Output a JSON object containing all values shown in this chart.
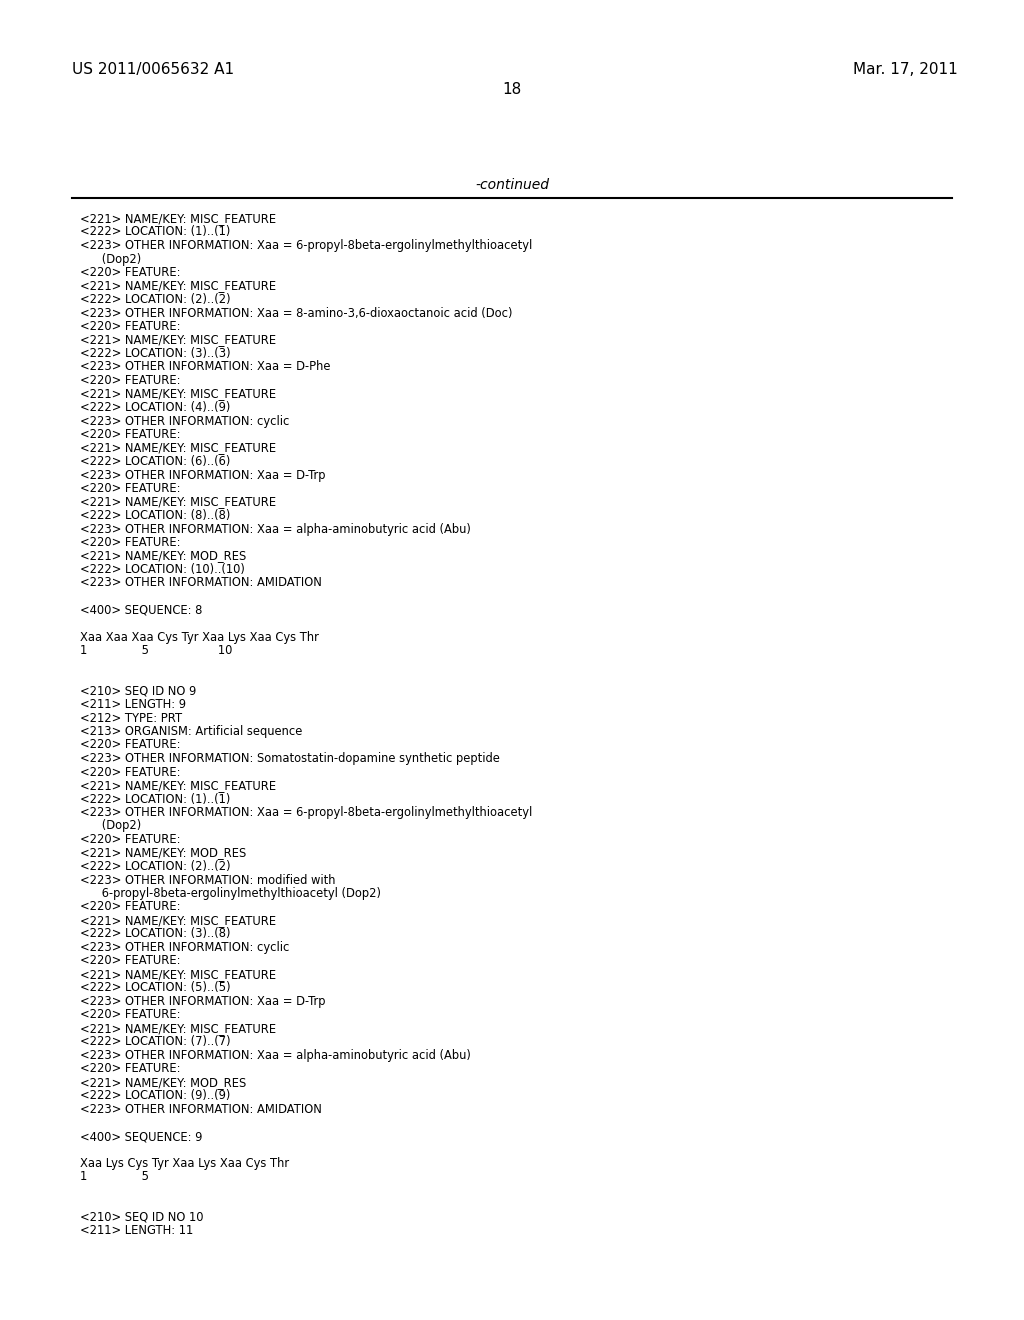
{
  "left_header": "US 2011/0065632 A1",
  "right_header": "Mar. 17, 2011",
  "page_number": "18",
  "continued_label": "-continued",
  "background_color": "#ffffff",
  "text_color": "#000000",
  "font_size": 8.3,
  "header_font_size": 11.0,
  "page_num_font_size": 11.0,
  "continued_font_size": 10.0,
  "lines": [
    "<221> NAME/KEY: MISC_FEATURE",
    "<222> LOCATION: (1)..(1)",
    "<223> OTHER INFORMATION: Xaa = 6-propyl-8beta-ergolinylmethylthioacetyl",
    "      (Dop2)",
    "<220> FEATURE:",
    "<221> NAME/KEY: MISC_FEATURE",
    "<222> LOCATION: (2)..(2)",
    "<223> OTHER INFORMATION: Xaa = 8-amino-3,6-dioxaoctanoic acid (Doc)",
    "<220> FEATURE:",
    "<221> NAME/KEY: MISC_FEATURE",
    "<222> LOCATION: (3)..(3)",
    "<223> OTHER INFORMATION: Xaa = D-Phe",
    "<220> FEATURE:",
    "<221> NAME/KEY: MISC_FEATURE",
    "<222> LOCATION: (4)..(9)",
    "<223> OTHER INFORMATION: cyclic",
    "<220> FEATURE:",
    "<221> NAME/KEY: MISC_FEATURE",
    "<222> LOCATION: (6)..(6)",
    "<223> OTHER INFORMATION: Xaa = D-Trp",
    "<220> FEATURE:",
    "<221> NAME/KEY: MISC_FEATURE",
    "<222> LOCATION: (8)..(8)",
    "<223> OTHER INFORMATION: Xaa = alpha-aminobutyric acid (Abu)",
    "<220> FEATURE:",
    "<221> NAME/KEY: MOD_RES",
    "<222> LOCATION: (10)..(10)",
    "<223> OTHER INFORMATION: AMIDATION",
    "",
    "<400> SEQUENCE: 8",
    "",
    "Xaa Xaa Xaa Cys Tyr Xaa Lys Xaa Cys Thr",
    "1               5                   10",
    "",
    "",
    "<210> SEQ ID NO 9",
    "<211> LENGTH: 9",
    "<212> TYPE: PRT",
    "<213> ORGANISM: Artificial sequence",
    "<220> FEATURE:",
    "<223> OTHER INFORMATION: Somatostatin-dopamine synthetic peptide",
    "<220> FEATURE:",
    "<221> NAME/KEY: MISC_FEATURE",
    "<222> LOCATION: (1)..(1)",
    "<223> OTHER INFORMATION: Xaa = 6-propyl-8beta-ergolinylmethylthioacetyl",
    "      (Dop2)",
    "<220> FEATURE:",
    "<221> NAME/KEY: MOD_RES",
    "<222> LOCATION: (2)..(2)",
    "<223> OTHER INFORMATION: modified with",
    "      6-propyl-8beta-ergolinylmethylthioacetyl (Dop2)",
    "<220> FEATURE:",
    "<221> NAME/KEY: MISC_FEATURE",
    "<222> LOCATION: (3)..(8)",
    "<223> OTHER INFORMATION: cyclic",
    "<220> FEATURE:",
    "<221> NAME/KEY: MISC_FEATURE",
    "<222> LOCATION: (5)..(5)",
    "<223> OTHER INFORMATION: Xaa = D-Trp",
    "<220> FEATURE:",
    "<221> NAME/KEY: MISC_FEATURE",
    "<222> LOCATION: (7)..(7)",
    "<223> OTHER INFORMATION: Xaa = alpha-aminobutyric acid (Abu)",
    "<220> FEATURE:",
    "<221> NAME/KEY: MOD_RES",
    "<222> LOCATION: (9)..(9)",
    "<223> OTHER INFORMATION: AMIDATION",
    "",
    "<400> SEQUENCE: 9",
    "",
    "Xaa Lys Cys Tyr Xaa Lys Xaa Cys Thr",
    "1               5",
    "",
    "",
    "<210> SEQ ID NO 10",
    "<211> LENGTH: 11"
  ]
}
